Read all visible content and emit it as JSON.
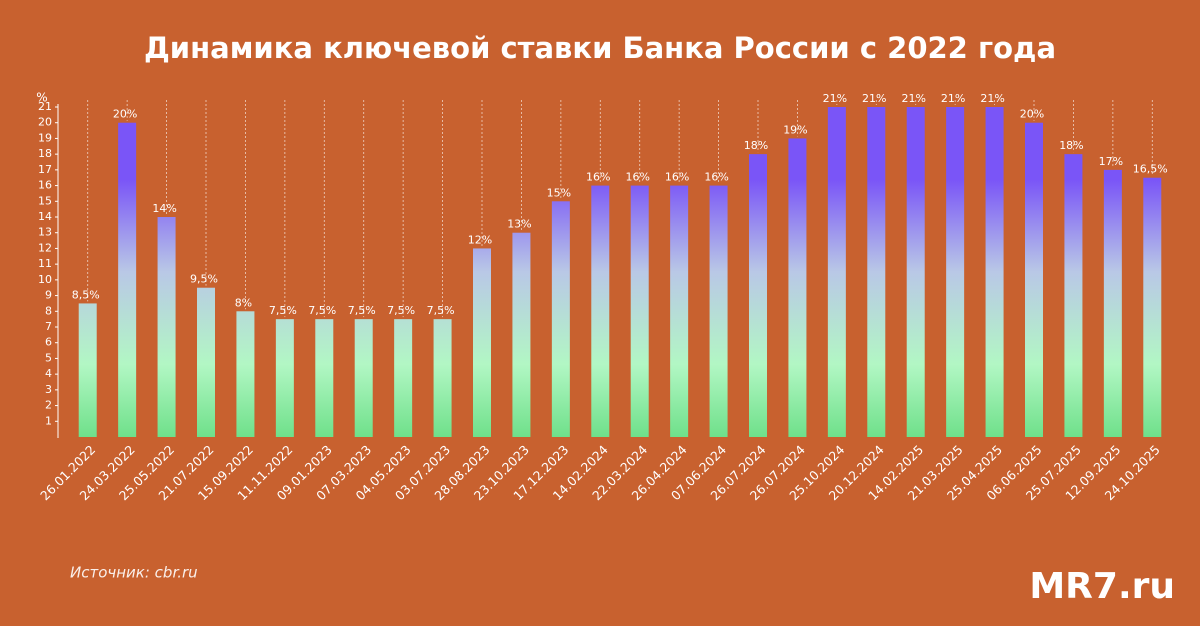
{
  "chart_data": {
    "type": "bar",
    "title": "Динамика ключевой ставки Банка России с 2022 года",
    "y_label": "%",
    "source": "Источник: cbr.ru",
    "logo": "MR7.ru",
    "background": "#c8612f",
    "gradient": [
      "#6fe08a",
      "#b2f7c4",
      "#b9c8e6",
      "#7a55f7"
    ],
    "categories": [
      "26.01.2022",
      "24.03.2022",
      "25.05.2022",
      "21.07.2022",
      "15.09.2022",
      "11.11.2022",
      "09.01.2023",
      "07.03.2023",
      "04.05.2023",
      "03.07.2023",
      "28.08.2023",
      "23.10.2023",
      "17.12.2023",
      "14.02.2024",
      "22.03.2024",
      "26.04.2024",
      "07.06.2024",
      "26.07.2024",
      "26.07.2024",
      "25.10.2024",
      "20.12.2024",
      "14.02.2025",
      "21.03.2025",
      "25.04.2025",
      "06.06.2025",
      "25.07.2025",
      "12.09.2025",
      "24.10.2025"
    ],
    "values": [
      8.5,
      20,
      14,
      9.5,
      8,
      7.5,
      7.5,
      7.5,
      7.5,
      7.5,
      12,
      13,
      15,
      16,
      16,
      16,
      16,
      18,
      19,
      21,
      21,
      21,
      21,
      21,
      20,
      18,
      17,
      16.5
    ],
    "value_labels": [
      "8,5%",
      "20%",
      "14%",
      "9,5%",
      "8%",
      "7,5%",
      "7,5%",
      "7,5%",
      "7,5%",
      "7,5%",
      "12%",
      "13%",
      "15%",
      "16%",
      "16%",
      "16%",
      "16%",
      "18%",
      "19%",
      "21%",
      "21%",
      "21%",
      "21%",
      "21%",
      "20%",
      "18%",
      "17%",
      "16,5%"
    ],
    "ylim": [
      0,
      21
    ],
    "yticks": [
      1,
      2,
      3,
      4,
      5,
      6,
      7,
      8,
      9,
      10,
      11,
      12,
      13,
      14,
      15,
      16,
      17,
      18,
      19,
      20,
      21
    ]
  }
}
